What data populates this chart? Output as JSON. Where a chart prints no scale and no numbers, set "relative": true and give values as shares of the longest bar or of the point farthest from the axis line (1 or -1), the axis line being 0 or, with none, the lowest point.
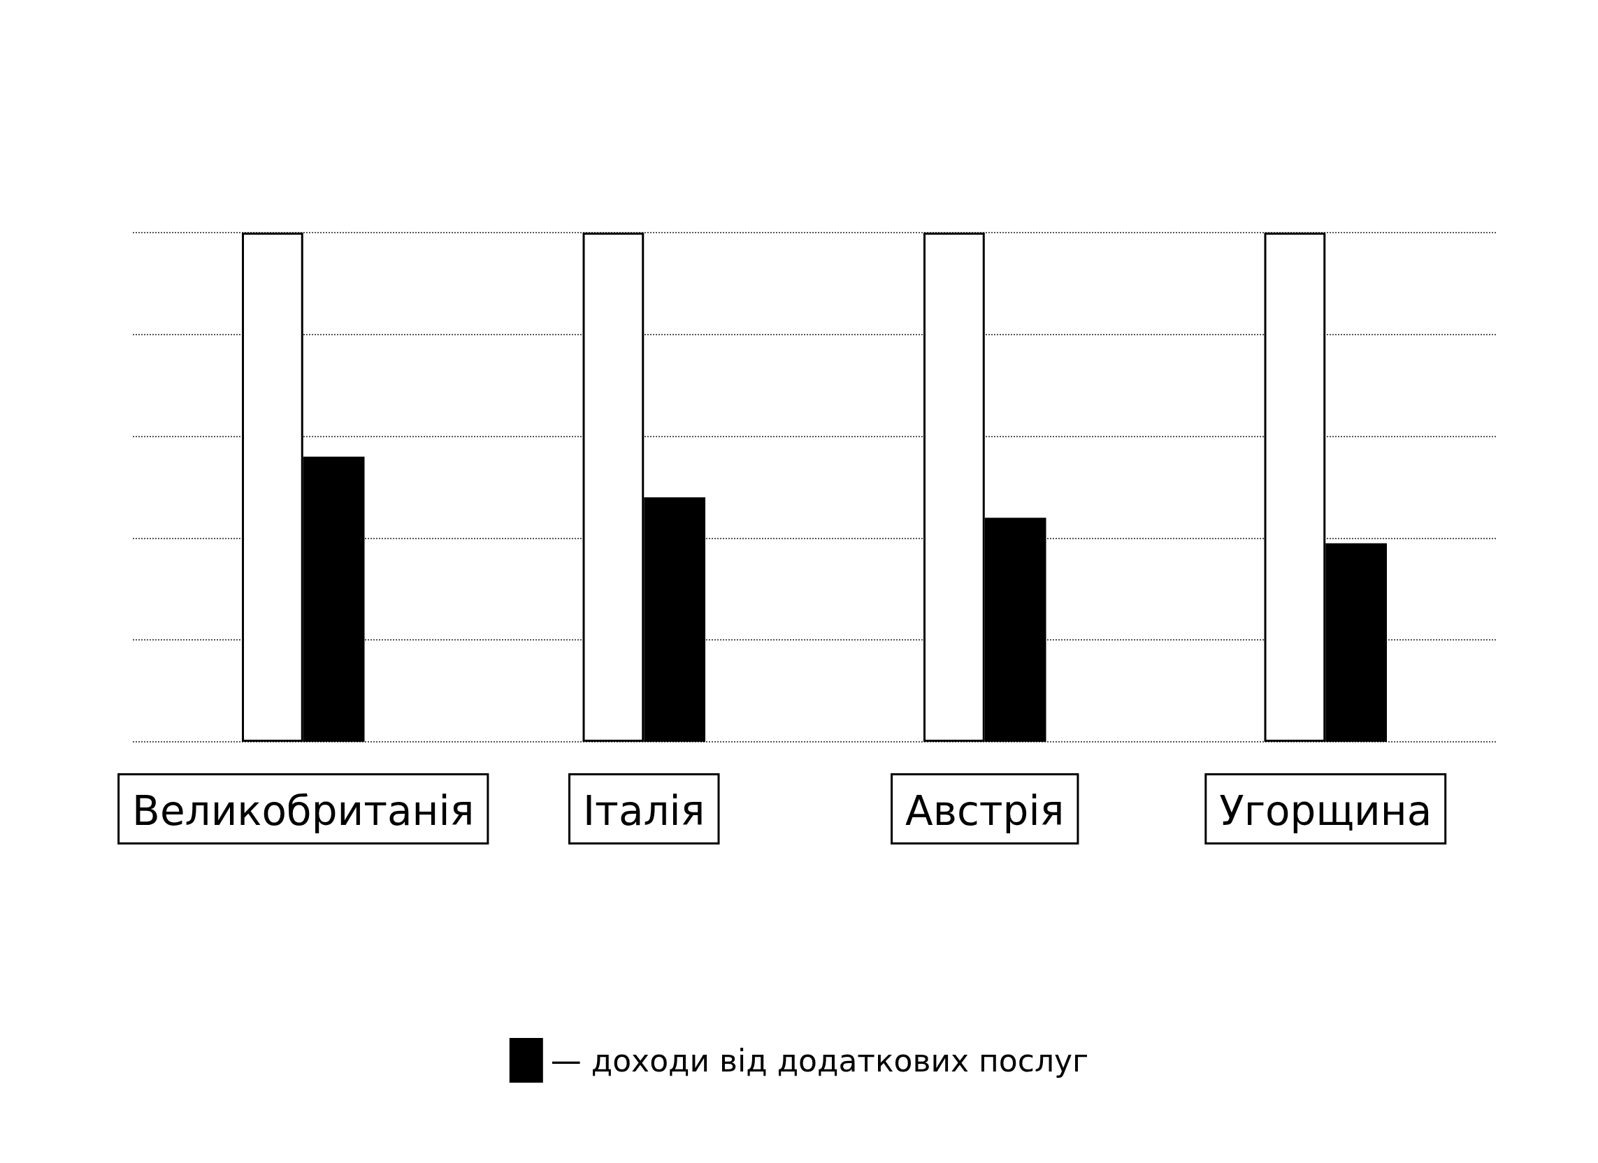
{
  "chart_data": {
    "type": "bar",
    "relative": true,
    "categories": [
      "Великобританія",
      "Італія",
      "Австрія",
      "Угорщина"
    ],
    "series": [
      {
        "color": "#ffffff",
        "values": [
          1,
          1,
          1,
          1
        ]
      },
      {
        "name": "— доходи від додаткових послуг",
        "color": "#000000",
        "values": [
          0.56,
          0.48,
          0.44,
          0.39
        ]
      }
    ],
    "grid": "y",
    "legend": "bottom"
  }
}
